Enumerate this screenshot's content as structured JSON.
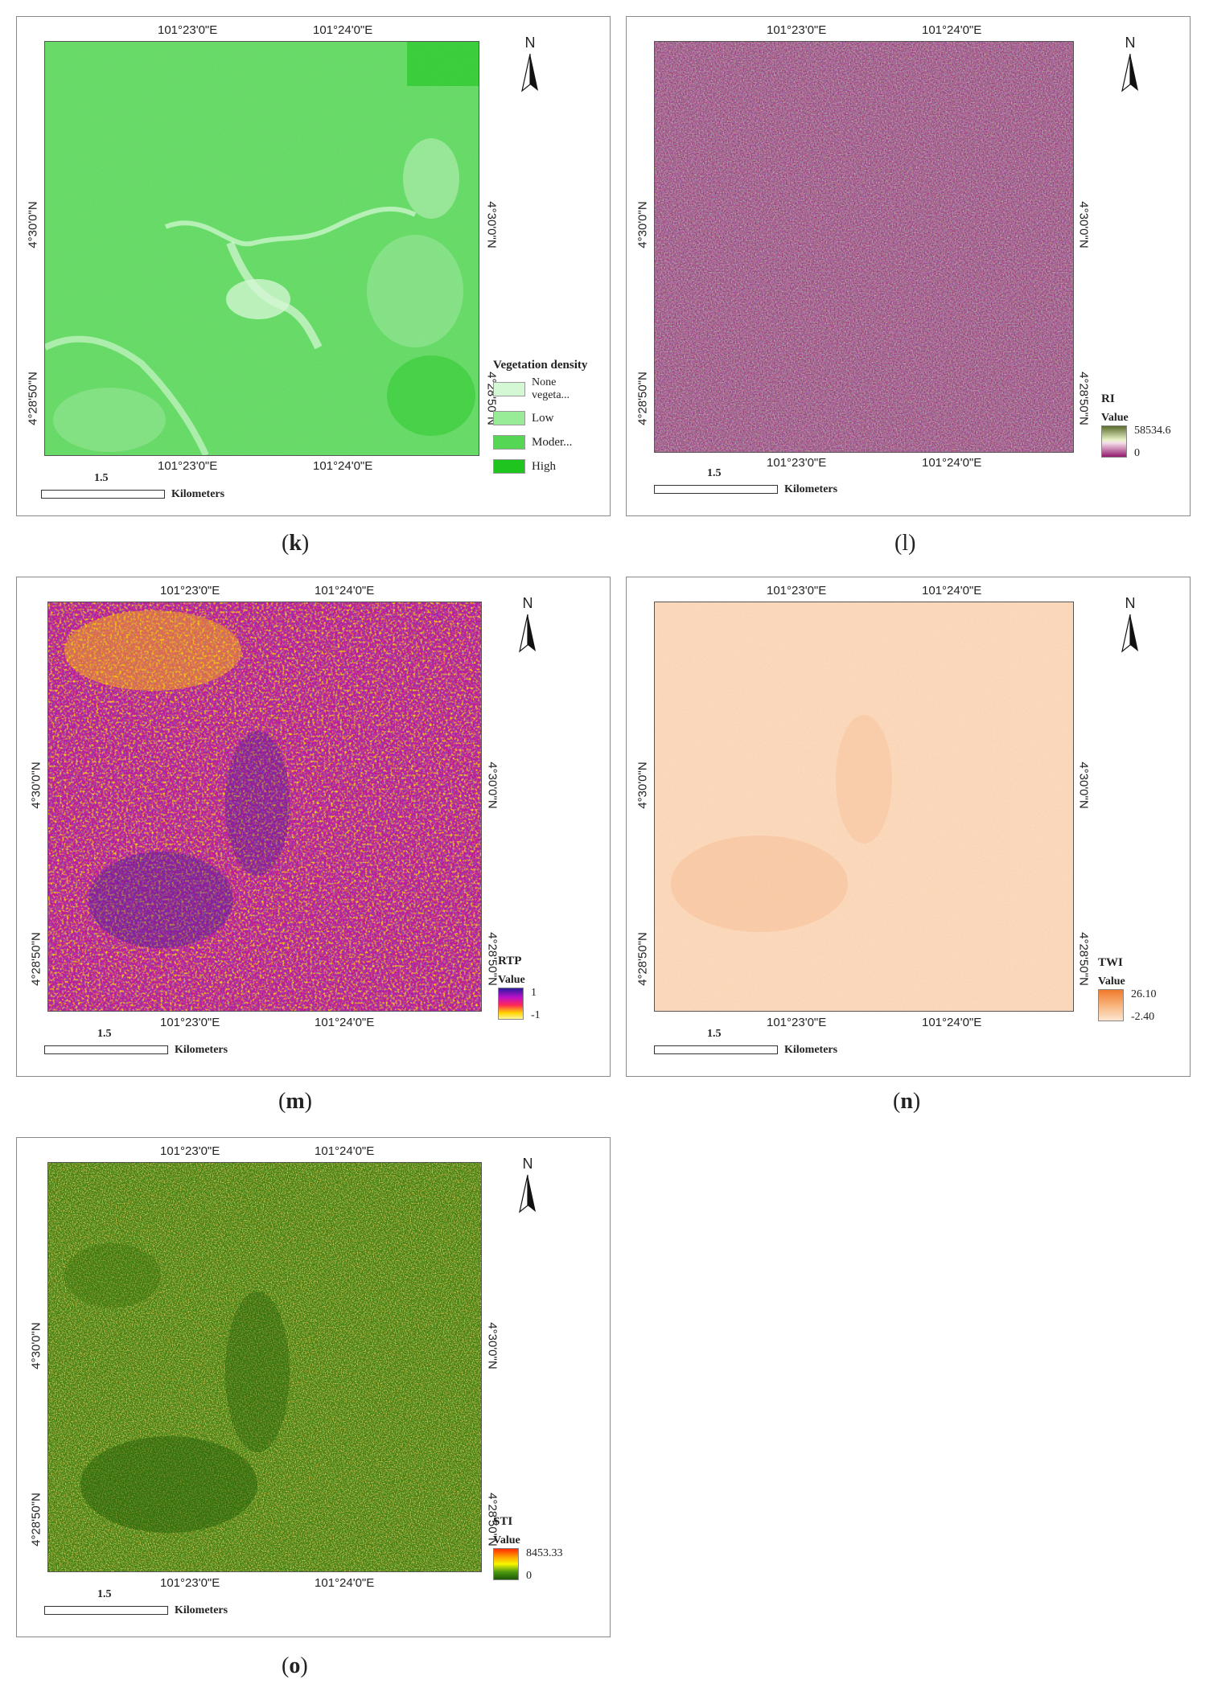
{
  "coords": {
    "lon_left": "101°23'0\"E",
    "lon_right": "101°24'0\"E",
    "lat_upper": "4°30'0\"N",
    "lat_lower": "4°28'50\"N"
  },
  "north_label": "N",
  "scale": {
    "value": "1.5",
    "unit": "Kilometers"
  },
  "panels": [
    {
      "id": "k",
      "caption_letter": "k",
      "legend_title": "Vegetation density",
      "legend_items": [
        {
          "label": "None vegeta...",
          "color": "#d4f7d4"
        },
        {
          "label": "Low",
          "color": "#98ec98"
        },
        {
          "label": "Moder...",
          "color": "#55d655"
        },
        {
          "label": "High",
          "color": "#1fc41f"
        }
      ]
    },
    {
      "id": "l",
      "caption_letter": "l",
      "legend_title": "RI",
      "legend_sub": "Value",
      "ramp_max": "58534.6",
      "ramp_min": "0",
      "ramp_colors": [
        "#5b6b2c",
        "#e9f2c8",
        "#f4dce8",
        "#93196c"
      ]
    },
    {
      "id": "m",
      "caption_letter": "m",
      "legend_title": "RTP",
      "legend_sub": "Value",
      "ramp_max": "1",
      "ramp_min": "-1",
      "ramp_colors": [
        "#2a1a9e",
        "#c010c8",
        "#ff2a55",
        "#ffd400",
        "#fff79a"
      ]
    },
    {
      "id": "n",
      "caption_letter": "n",
      "legend_title": "TWI",
      "legend_sub": "Value",
      "ramp_max": "26.10",
      "ramp_min": "-2.40",
      "ramp_colors": [
        "#f07a2a",
        "#f8b47c",
        "#fde6d0"
      ]
    },
    {
      "id": "o",
      "caption_letter": "o",
      "legend_title": "STI",
      "legend_sub": "Value",
      "ramp_max": "8453.33",
      "ramp_min": "0",
      "ramp_colors": [
        "#ff2a00",
        "#ffb000",
        "#f6f600",
        "#4c9a10",
        "#1d5a05"
      ]
    }
  ]
}
